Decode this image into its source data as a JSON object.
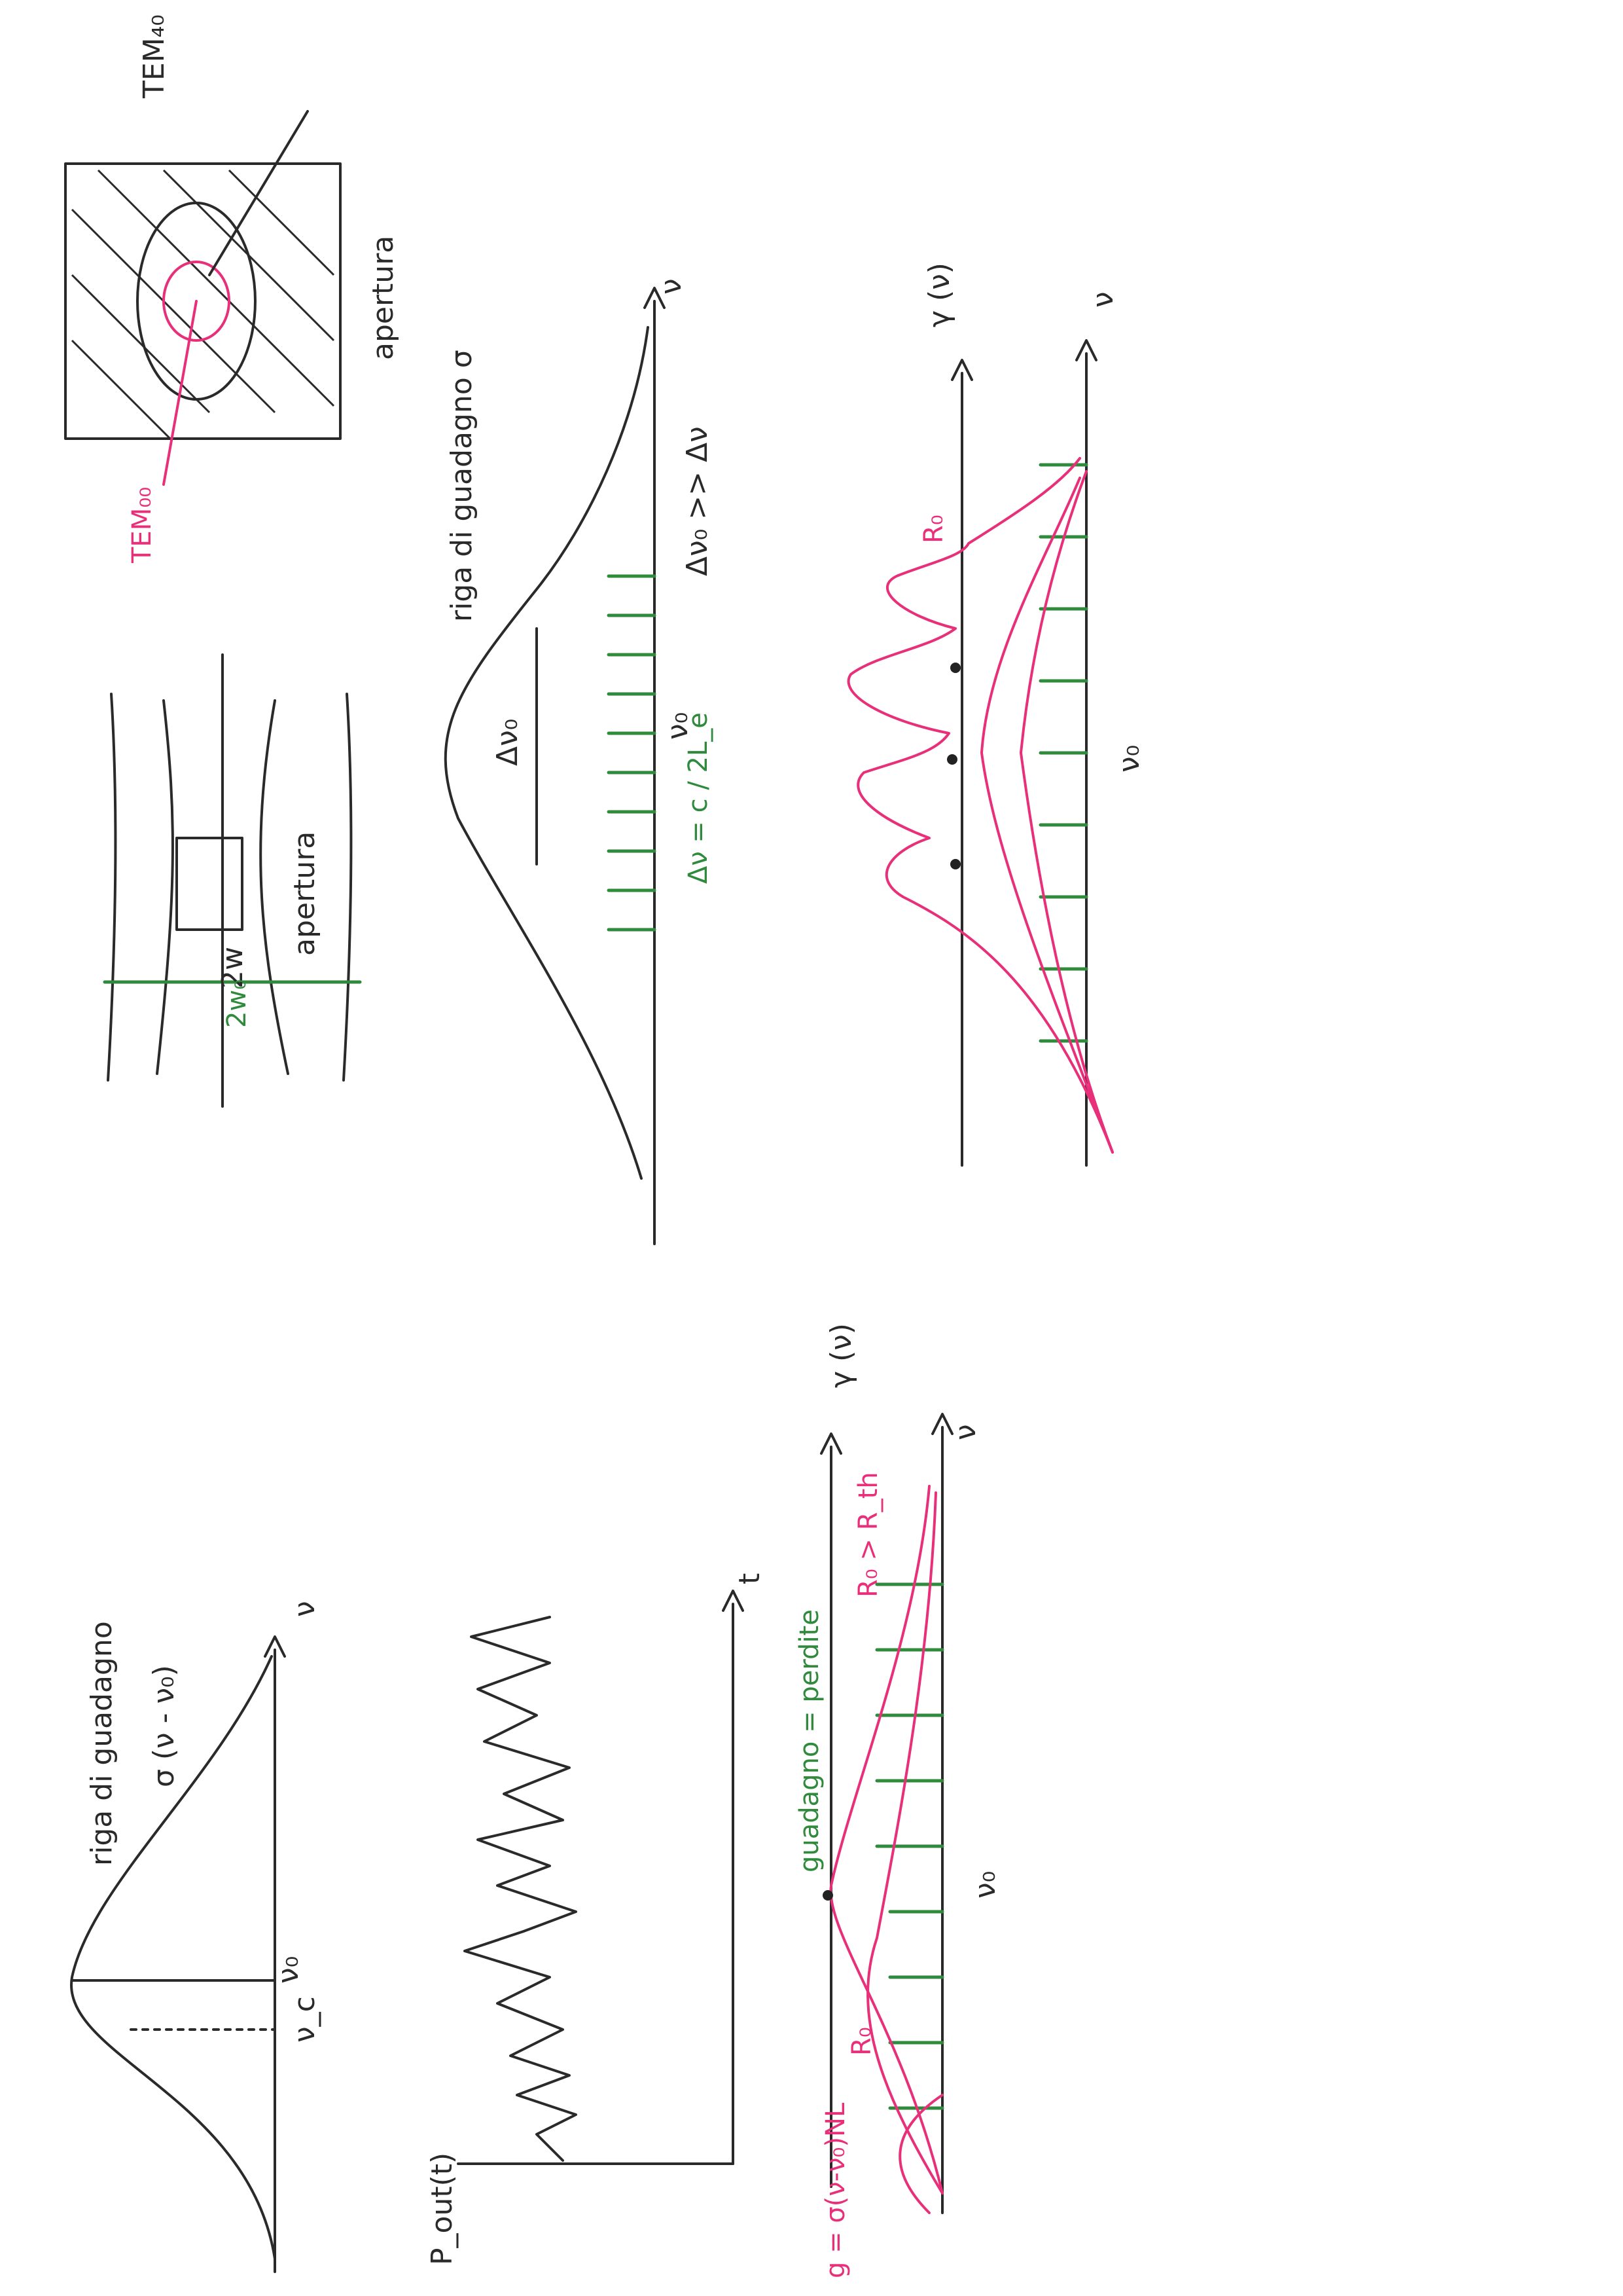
{
  "colors": {
    "ink": "#2a2a2a",
    "pink": "#e8307a",
    "green": "#2f8a3c"
  },
  "labels": {
    "gain_line": "riga di guadagno",
    "sigma_expr": "σ (ν - ν₀)",
    "nu": "ν",
    "nu0": "ν₀",
    "nuc": "ν_c",
    "pout": "P_out(t)",
    "t": "t",
    "gamma_nu": "γ (ν)",
    "g_formula": "g = σ(ν-ν₀)NL",
    "gain_loss": "guadagno = perdite",
    "r0_rth": "R₀ > R_th",
    "r0": "R₀",
    "aperture": "apertura",
    "two_w": "2w",
    "two_w0": "2w₀",
    "tem00": "TEM₀₀",
    "tem40": "TEM₄₀",
    "delta_nu0": "Δν₀",
    "delta_nu_formula": "Δν = c / 2L_e",
    "delta_ineq": "Δν₀ >> Δν",
    "gain_line_sigma": "riga di guadagno σ"
  }
}
